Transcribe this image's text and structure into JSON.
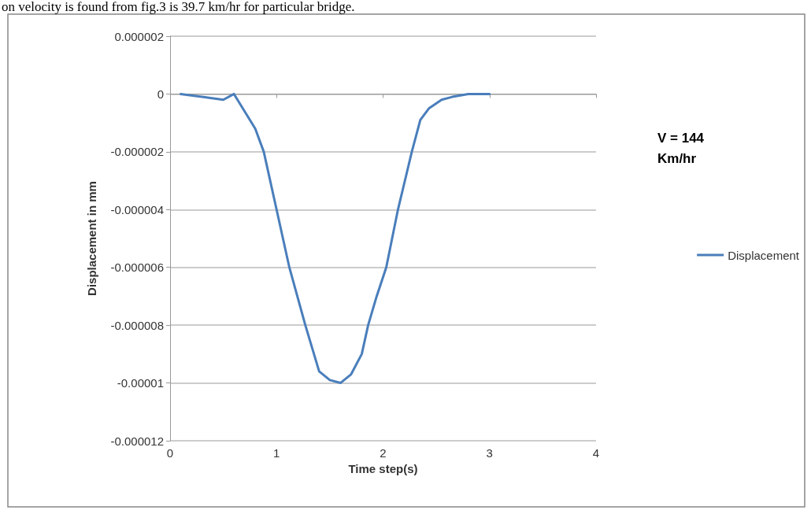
{
  "chart_data": {
    "type": "line",
    "xlabel": "Time step(s)",
    "ylabel": "Displacement in mm",
    "annotations": [
      "on velocity is found from fig.3 is 39.7 km/hr for particular bridge.",
      "V = 144\nKm/hr"
    ],
    "series": [
      {
        "name": "Displacement",
        "color": "#4a7ebb",
        "x": [
          0.1,
          0.3,
          0.5,
          0.6,
          0.7,
          0.8,
          0.88,
          1.0,
          1.12,
          1.27,
          1.4,
          1.5,
          1.6,
          1.7,
          1.8,
          1.86,
          1.94,
          2.03,
          2.14,
          2.27,
          2.35,
          2.43,
          2.55,
          2.65,
          2.8,
          3.0
        ],
        "values": [
          0,
          -1e-07,
          -2e-07,
          0,
          -6e-07,
          -1.2e-06,
          -2e-06,
          -4e-06,
          -6e-06,
          -8e-06,
          -9.6e-06,
          -9.9e-06,
          -1e-05,
          -9.7e-06,
          -9e-06,
          -8e-06,
          -7e-06,
          -6e-06,
          -4e-06,
          -2e-06,
          -9e-07,
          -5e-07,
          -2e-07,
          -1e-07,
          0,
          0
        ]
      }
    ],
    "xlim": [
      0,
      4
    ],
    "xticks": [
      0,
      1,
      2,
      3,
      4
    ],
    "ylim": [
      -1.2e-05,
      2e-06
    ],
    "yticks": [
      {
        "value": -1.2e-05,
        "label": "-0.000012"
      },
      {
        "value": -1e-05,
        "label": "-0.00001"
      },
      {
        "value": -8e-06,
        "label": "-0.000008"
      },
      {
        "value": -6e-06,
        "label": "-0.000006"
      },
      {
        "value": -4e-06,
        "label": "-0.000004"
      },
      {
        "value": -2e-06,
        "label": "-0.000002"
      },
      0,
      {
        "value": 2e-06,
        "label": "0.000002"
      }
    ],
    "grid": "y",
    "legend": "right",
    "marker": "none",
    "line_style": "solid"
  }
}
